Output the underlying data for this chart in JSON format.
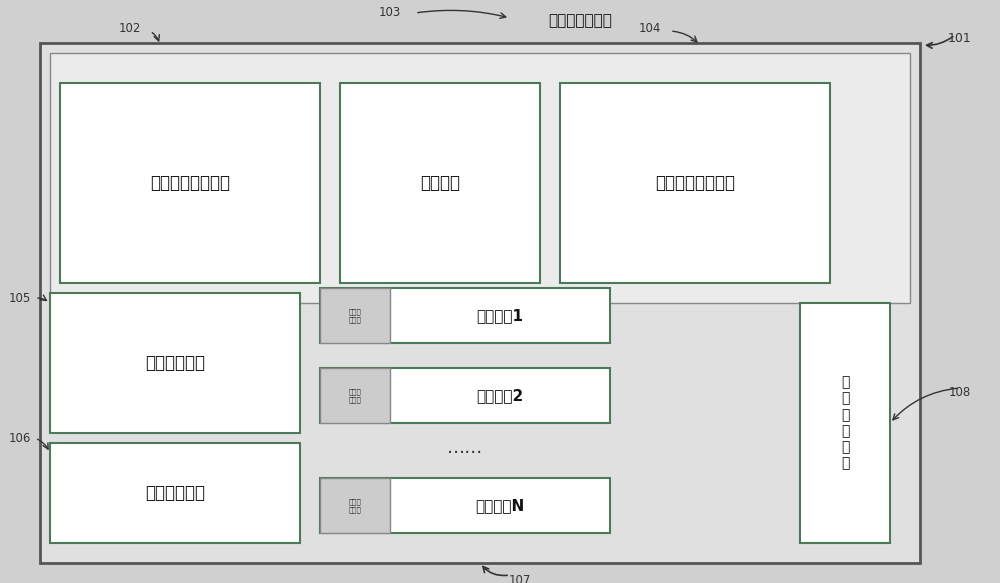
{
  "bg_color": "#e8e8e8",
  "inner_bg": "#e8e8e8",
  "white": "#ffffff",
  "dark": "#222222",
  "green": "#4a7a5a",
  "gray_box": "#d8d8d8",
  "title": "神经网络加速器",
  "box_input": "输入数据存储单元",
  "box_control": "控制单元",
  "box_output": "输出数据存储单元",
  "box_weight": "权重存储单元",
  "box_instr": "指令存储单元",
  "box_compress": "数\n据\n压\n缩\n单\n元",
  "cu1_label": "计算单元1",
  "cu2_label": "计算单元2",
  "cuN_label": "计算单元N",
  "cu_sub": "数据检\n索单元",
  "dots": "……",
  "lbl_101": "101",
  "lbl_102": "102",
  "lbl_103": "103",
  "lbl_104": "104",
  "lbl_105": "105",
  "lbl_106": "106",
  "lbl_107": "107",
  "lbl_108": "108"
}
